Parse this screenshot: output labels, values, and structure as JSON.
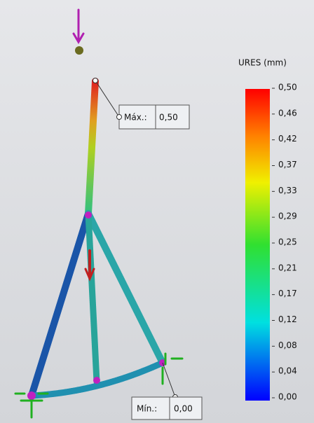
{
  "legend": {
    "title": "URES (mm)",
    "ticks": [
      "0,50",
      "0,46",
      "0,42",
      "0,37",
      "0,33",
      "0,29",
      "0,25",
      "0,21",
      "0,17",
      "0,12",
      "0,08",
      "0,04",
      "0,00"
    ]
  },
  "annotations": {
    "max": {
      "label": "Máx.:",
      "value": "0,50"
    },
    "min": {
      "label": "Mín.:",
      "value": "0,00"
    }
  }
}
